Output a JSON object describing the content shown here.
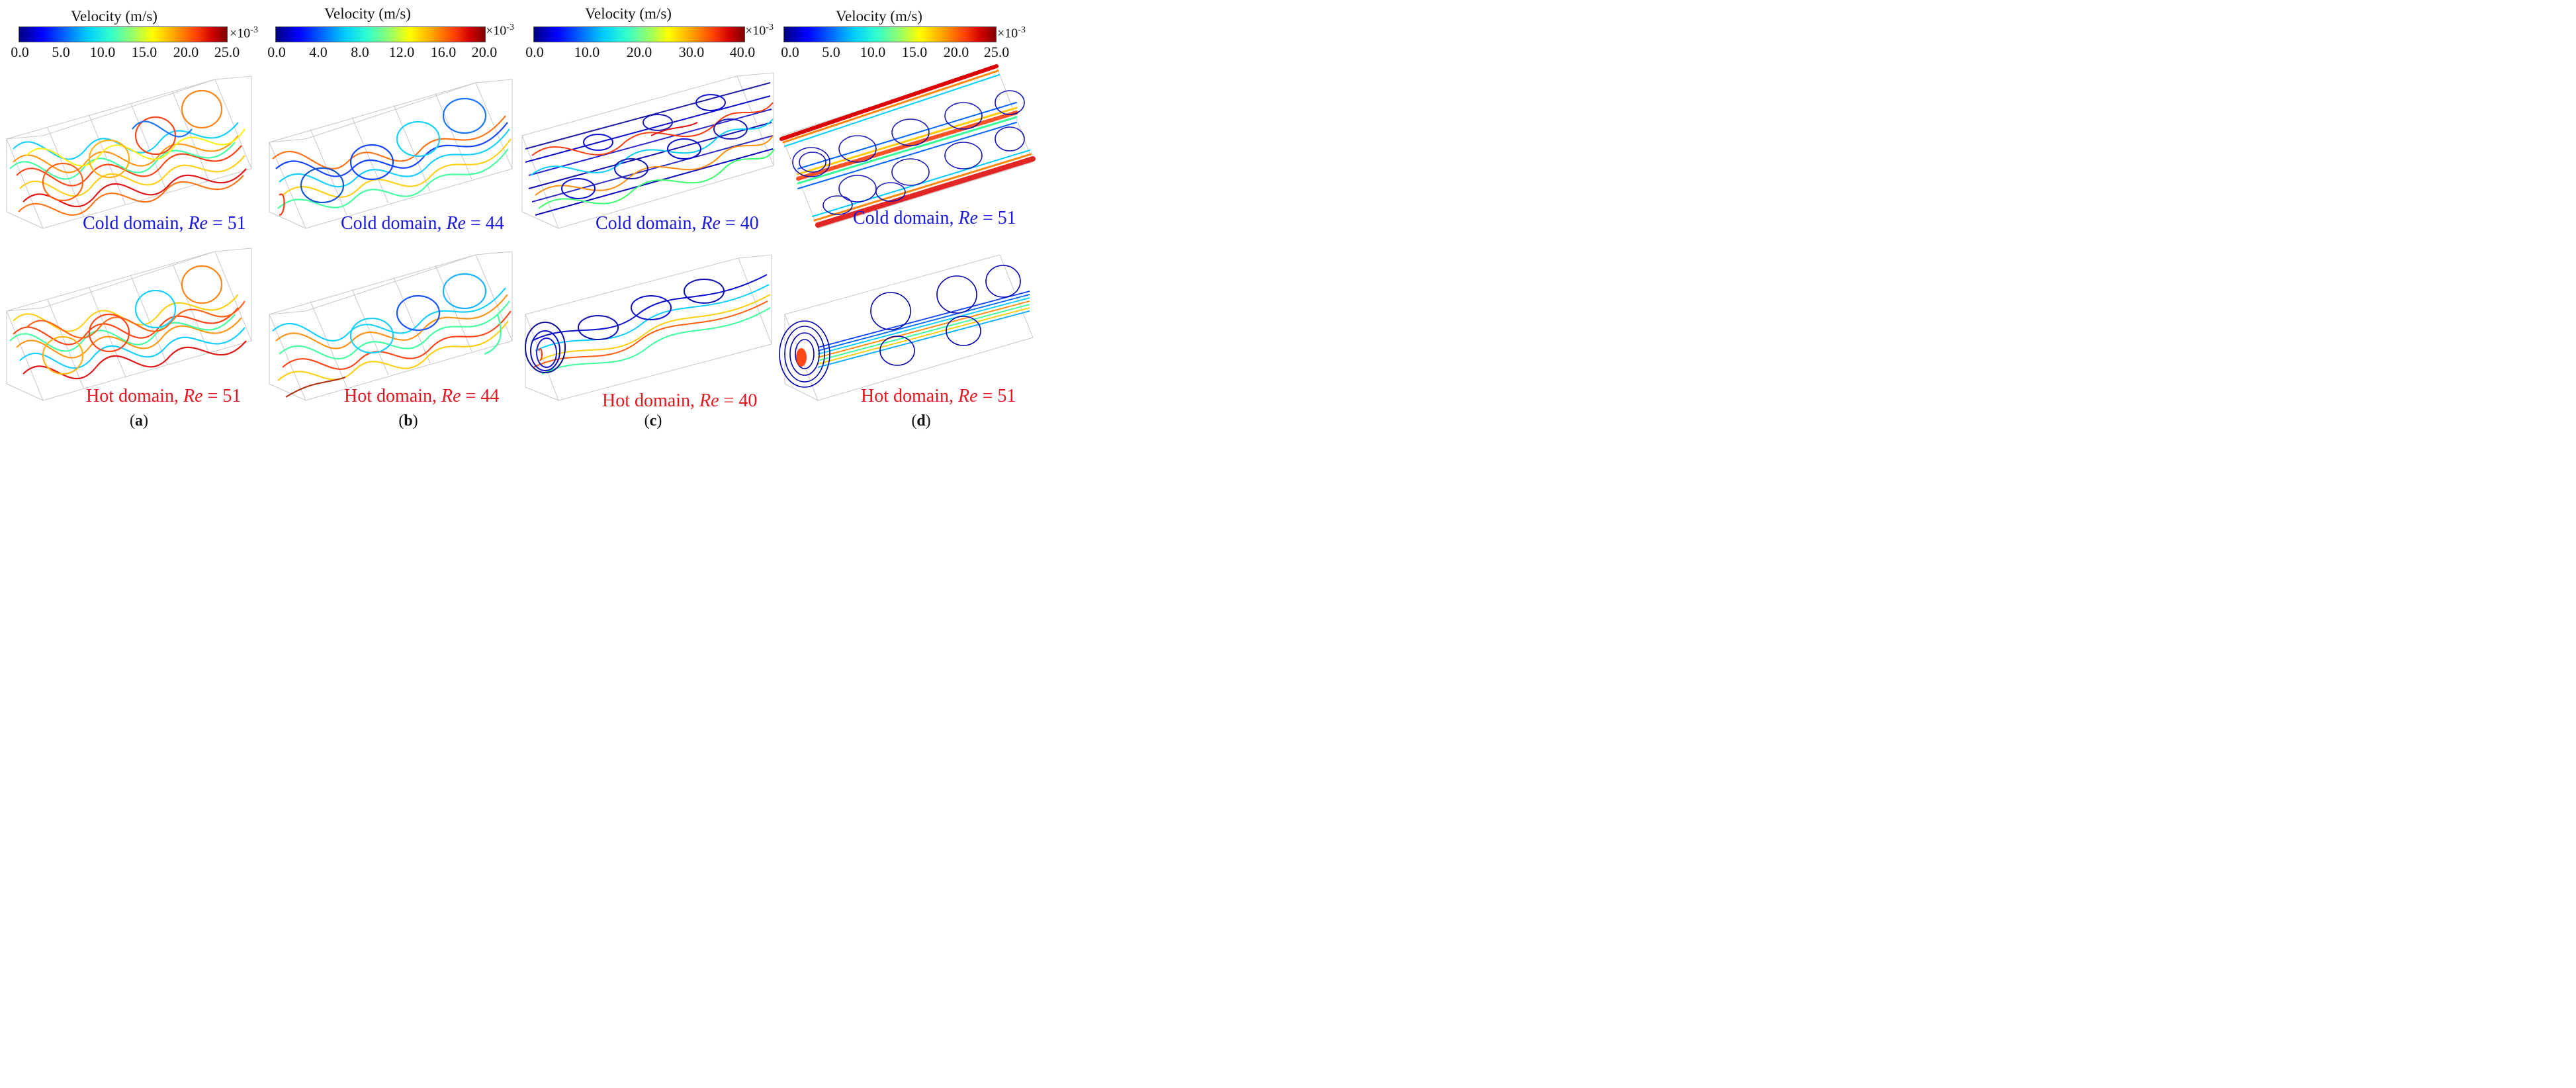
{
  "colorbar_title": "Velocity (m/s)",
  "colorbar_multiplier": "×10",
  "colorbar_exponent": "-3",
  "panels": [
    {
      "label_open": "(",
      "label_letter": "a",
      "label_close": ")",
      "ticks": [
        "0.0",
        "5.0",
        "10.0",
        "15.0",
        "20.0",
        "25.0"
      ],
      "cold_prefix": "Cold domain, ",
      "cold_re": "Re",
      "cold_value": " = 51",
      "hot_prefix": "Hot domain, ",
      "hot_re": "Re",
      "hot_value": " = 51"
    },
    {
      "label_open": "(",
      "label_letter": "b",
      "label_close": ")",
      "ticks": [
        "0.0",
        "4.0",
        "8.0",
        "12.0",
        "16.0",
        "20.0"
      ],
      "cold_prefix": "Cold domain, ",
      "cold_re": "Re",
      "cold_value": " = 44",
      "hot_prefix": "Hot domain, ",
      "hot_re": "Re",
      "hot_value": " = 44"
    },
    {
      "label_open": "(",
      "label_letter": "c",
      "label_close": ")",
      "ticks": [
        "0.0",
        "10.0",
        "20.0",
        "30.0",
        "40.0"
      ],
      "cold_prefix": "Cold domain, ",
      "cold_re": "Re",
      "cold_value": " = 40",
      "hot_prefix": "Hot domain, ",
      "hot_re": "Re",
      "hot_value": " = 40"
    },
    {
      "label_open": "(",
      "label_letter": "d",
      "label_close": ")",
      "ticks": [
        "0.0",
        "5.0",
        "10.0",
        "15.0",
        "20.0",
        "25.0"
      ],
      "cold_prefix": "Cold domain, ",
      "cold_re": "Re",
      "cold_value": " = 51",
      "hot_prefix": "Hot domain, ",
      "hot_re": "Re",
      "hot_value": " = 51"
    }
  ]
}
